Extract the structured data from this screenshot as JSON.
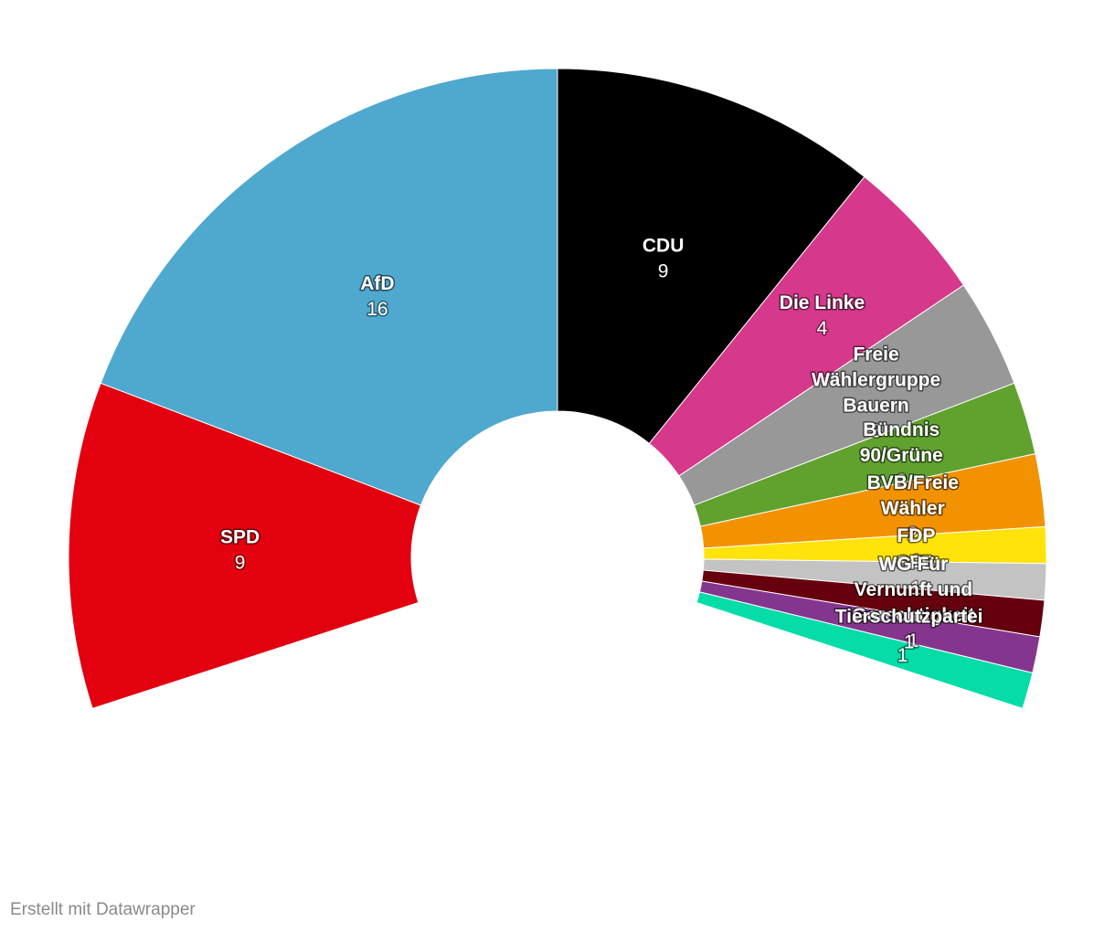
{
  "chart_data": {
    "type": "parliament-half-donut",
    "title": "",
    "subtitle": "",
    "series": [
      {
        "name": "SPD",
        "value": 9,
        "color": "#e3000f"
      },
      {
        "name": "AfD",
        "value": 16,
        "color": "#4fa8ce"
      },
      {
        "name": "CDU",
        "value": 9,
        "color": "#000000"
      },
      {
        "name": "Die Linke",
        "value": 4,
        "color": "#d6388b"
      },
      {
        "name": "Freie Wählergruppe Bauern",
        "value": 3,
        "color": "#989898"
      },
      {
        "name": "Bündnis 90/Grüne",
        "value": 2,
        "color": "#61a22f"
      },
      {
        "name": "BVB/Freie Wähler",
        "value": 2,
        "color": "#f29200"
      },
      {
        "name": "FDP",
        "value": 1,
        "color": "#ffe30a"
      },
      {
        "name": "SFB",
        "value": 1,
        "color": "#c3c3c3"
      },
      {
        "name": "WG Für Vernunft und Gerechtigkeit",
        "value": 1,
        "color": "#66000f"
      },
      {
        "name": "Tierschutzpartei",
        "value": 1,
        "color": "#84368e"
      },
      {
        "name": "",
        "value": 1,
        "color": "#05dca7"
      }
    ]
  },
  "footer": {
    "credit": "Erstellt mit Datawrapper"
  }
}
